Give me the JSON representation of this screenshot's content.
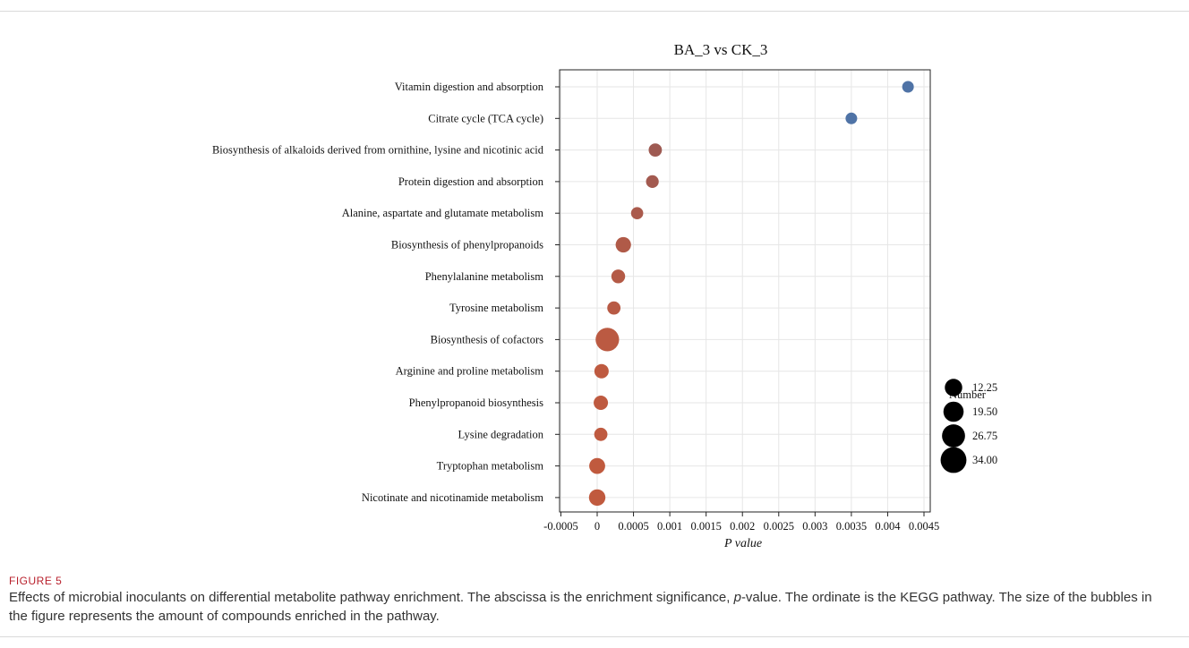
{
  "chart_data": {
    "type": "scatter",
    "title": "BA_3 vs CK_3",
    "xlabel": "P value",
    "ylabel": "",
    "xlim": [
      -0.0005,
      0.0045
    ],
    "x_ticks": [
      "-0.0005",
      "0",
      "0.0005",
      "0.001",
      "0.0015",
      "0.002",
      "0.0025",
      "0.003",
      "0.0035",
      "0.004",
      "0.0045"
    ],
    "x_tick_values": [
      -0.0005,
      0,
      0.0005,
      0.001,
      0.0015,
      0.002,
      0.0025,
      0.003,
      0.0035,
      0.004,
      0.0045
    ],
    "grid": true,
    "legend": {
      "title": "Number",
      "placement": "right",
      "entries": [
        {
          "label": "12.25",
          "value": 12.25
        },
        {
          "label": "19.50",
          "value": 19.5
        },
        {
          "label": "26.75",
          "value": 26.75
        },
        {
          "label": "34.00",
          "value": 34
        }
      ]
    },
    "points": [
      {
        "pathway": "Vitamin digestion and absorption",
        "p": 0.00428,
        "number": 12,
        "color": "#4f73a6"
      },
      {
        "pathway": "Citrate cycle (TCA cycle)",
        "p": 0.0035,
        "number": 12,
        "color": "#4f73a6"
      },
      {
        "pathway": "Biosynthesis of alkaloids derived from ornithine, lysine and nicotinic acid",
        "p": 0.0008,
        "number": 15,
        "color": "#9e5a52"
      },
      {
        "pathway": "Protein digestion and absorption",
        "p": 0.00076,
        "number": 14,
        "color": "#a35a50"
      },
      {
        "pathway": "Alanine, aspartate and glutamate metabolism",
        "p": 0.00055,
        "number": 13,
        "color": "#aa5a4c"
      },
      {
        "pathway": "Biosynthesis of phenylpropanoids",
        "p": 0.00036,
        "number": 19,
        "color": "#b05a48"
      },
      {
        "pathway": "Phenylalanine metabolism",
        "p": 0.00029,
        "number": 16,
        "color": "#b45a46"
      },
      {
        "pathway": "Tyrosine metabolism",
        "p": 0.00023,
        "number": 15,
        "color": "#b85a44"
      },
      {
        "pathway": "Biosynthesis of cofactors",
        "p": 0.00014,
        "number": 34,
        "color": "#bb5a42"
      },
      {
        "pathway": "Arginine and proline metabolism",
        "p": 6e-05,
        "number": 17,
        "color": "#be5a40"
      },
      {
        "pathway": "Phenylpropanoid biosynthesis",
        "p": 5e-05,
        "number": 17,
        "color": "#be5a40"
      },
      {
        "pathway": "Lysine degradation",
        "p": 5e-05,
        "number": 15,
        "color": "#bf5a40"
      },
      {
        "pathway": "Tryptophan metabolism",
        "p": 0.0,
        "number": 20,
        "color": "#c05a3e"
      },
      {
        "pathway": "Nicotinate and nicotinamide metabolism",
        "p": 0.0,
        "number": 21,
        "color": "#c05a3e"
      }
    ]
  },
  "caption": {
    "label": "FIGURE 5",
    "text_before": "Effects of microbial inoculants on differential metabolite pathway enrichment. The abscissa is the enrichment significance, ",
    "p_symbol": "p",
    "text_after": "-value. The ordinate is the KEGG pathway. The size of the bubbles in the figure represents the amount of compounds enriched in the pathway."
  }
}
